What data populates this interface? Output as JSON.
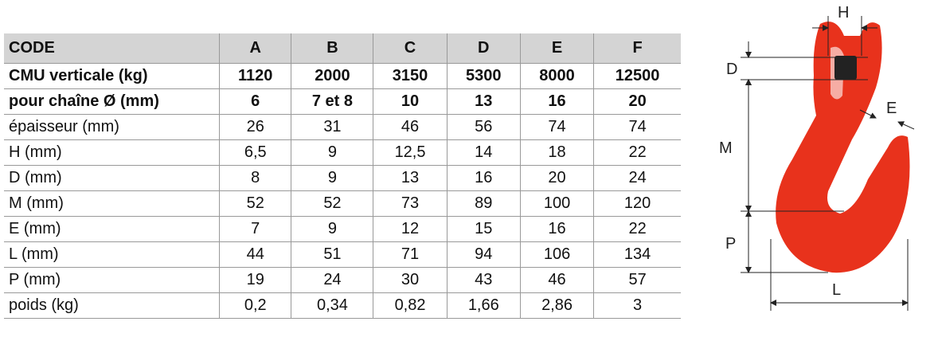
{
  "table": {
    "header": [
      "CODE",
      "A",
      "B",
      "C",
      "D",
      "E",
      "F"
    ],
    "rows": [
      [
        "CMU verticale (kg)",
        "1120",
        "2000",
        "3150",
        "5300",
        "8000",
        "12500"
      ],
      [
        "pour chaîne Ø (mm)",
        "6",
        "7 et 8",
        "10",
        "13",
        "16",
        "20"
      ],
      [
        "épaisseur (mm)",
        "26",
        "31",
        "46",
        "56",
        "74",
        "74"
      ],
      [
        "H (mm)",
        "6,5",
        "9",
        "12,5",
        "14",
        "18",
        "22"
      ],
      [
        "D (mm)",
        "8",
        "9",
        "13",
        "16",
        "20",
        "24"
      ],
      [
        "M (mm)",
        "52",
        "52",
        "73",
        "89",
        "100",
        "120"
      ],
      [
        "E (mm)",
        "7",
        "9",
        "12",
        "15",
        "16",
        "22"
      ],
      [
        "L (mm)",
        "44",
        "51",
        "71",
        "94",
        "106",
        "134"
      ],
      [
        "P (mm)",
        "19",
        "24",
        "30",
        "43",
        "46",
        "57"
      ],
      [
        "poids (kg)",
        "0,2",
        "0,34",
        "0,82",
        "1,66",
        "2,86",
        "3"
      ]
    ]
  },
  "diagram": {
    "labels": {
      "H": "H",
      "D": "D",
      "E": "E",
      "M": "M",
      "P": "P",
      "L": "L"
    }
  }
}
